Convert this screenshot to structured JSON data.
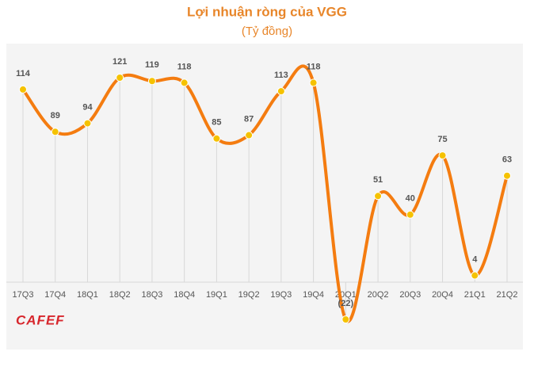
{
  "chart_data": {
    "type": "line",
    "title": "Lợi nhuận ròng của VGG",
    "subtitle": "(Tỷ đồng)",
    "categories": [
      "17Q3",
      "17Q4",
      "18Q1",
      "18Q2",
      "18Q3",
      "18Q4",
      "19Q1",
      "19Q2",
      "19Q3",
      "19Q4",
      "20Q1",
      "20Q2",
      "20Q3",
      "20Q4",
      "21Q1",
      "21Q2"
    ],
    "values": [
      114,
      89,
      94,
      121,
      119,
      118,
      85,
      87,
      113,
      118,
      -22,
      51,
      40,
      75,
      4,
      63
    ],
    "value_labels": [
      "114",
      "89",
      "94",
      "121",
      "119",
      "118",
      "85",
      "87",
      "113",
      "118",
      "(22)",
      "51",
      "40",
      "75",
      "4",
      "63"
    ],
    "color": "#f47c10",
    "marker_color": "#f5c200",
    "smooth": true,
    "watermark": "CAFEF"
  }
}
